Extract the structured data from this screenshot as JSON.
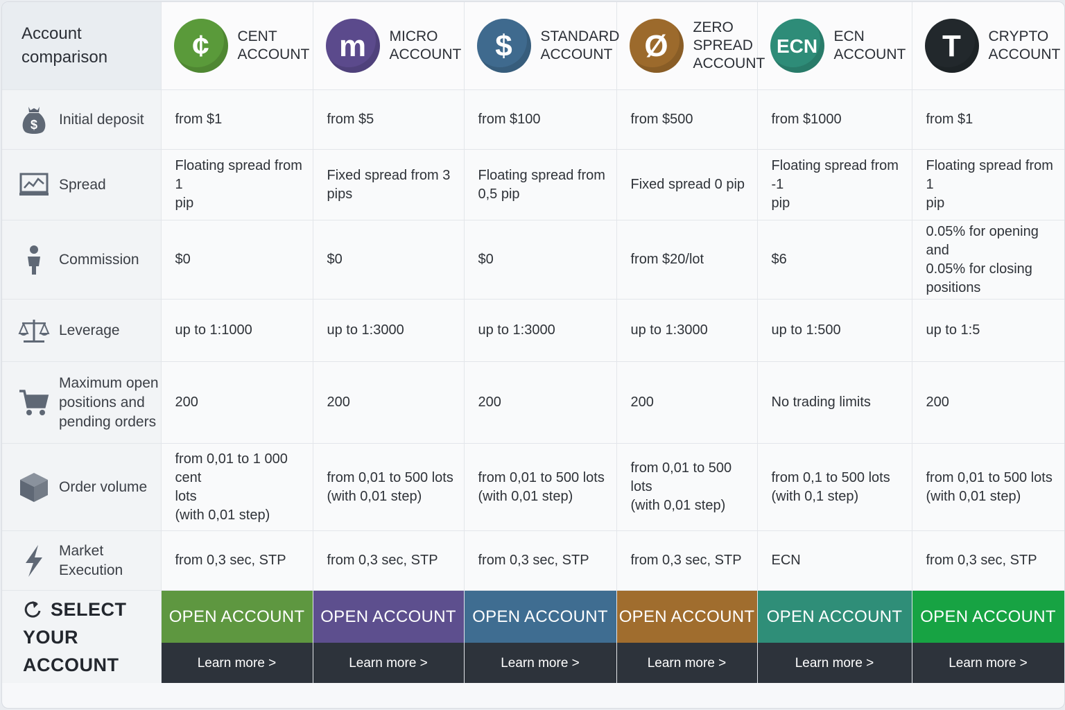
{
  "corner_title": "Account\ncomparison",
  "accounts": [
    {
      "symbol": "¢",
      "name": "CENT\nACCOUNT",
      "color": "#5a9a3a",
      "icon": "cent-icon"
    },
    {
      "symbol": "m",
      "name": "MICRO\nACCOUNT",
      "color": "#5b4a8c",
      "icon": "micro-icon"
    },
    {
      "symbol": "$",
      "name": "STANDARD\nACCOUNT",
      "color": "#3f6a8e",
      "icon": "dollar-icon"
    },
    {
      "symbol": "Ø",
      "name": "ZERO\nSPREAD\nACCOUNT",
      "color": "#9c6a2c",
      "icon": "zero-icon"
    },
    {
      "symbol": "ECN",
      "name": "ECN\nACCOUNT",
      "color": "#2e8c78",
      "icon": "ecn-icon"
    },
    {
      "symbol": "T",
      "name": "CRYPTO\nACCOUNT",
      "color": "#22282c",
      "icon": "tether-icon"
    }
  ],
  "rows": [
    {
      "key": "deposit",
      "label": "Initial deposit",
      "icon": "money-bag-icon",
      "values": [
        "from $1",
        "from $5",
        "from $100",
        "from $500",
        "from $1000",
        "from $1"
      ]
    },
    {
      "key": "spread",
      "label": "Spread",
      "icon": "chart-monitor-icon",
      "values": [
        "Floating spread from 1\npip",
        "Fixed spread from 3\npips",
        "Floating spread from\n0,5 pip",
        "Fixed spread 0 pip",
        "Floating spread from -1\npip",
        "Floating spread from 1\npip"
      ]
    },
    {
      "key": "commission",
      "label": "Commission",
      "icon": "person-icon",
      "values": [
        "$0",
        "$0",
        "$0",
        "from $20/lot",
        "$6",
        "0.05% for opening and\n0.05% for closing\npositions"
      ]
    },
    {
      "key": "leverage",
      "label": "Leverage",
      "icon": "scales-icon",
      "values": [
        "up to 1:1000",
        "up to 1:3000",
        "up to 1:3000",
        "up to 1:3000",
        "up to 1:500",
        "up to 1:5"
      ]
    },
    {
      "key": "maxpos",
      "label": "Maximum open\npositions and\npending orders",
      "icon": "cart-icon",
      "values": [
        "200",
        "200",
        "200",
        "200",
        "No trading limits",
        "200"
      ]
    },
    {
      "key": "volume",
      "label": "Order volume",
      "icon": "box-icon",
      "values": [
        "from 0,01 to 1 000 cent\nlots\n(with 0,01 step)",
        "from 0,01 to 500 lots\n(with 0,01 step)",
        "from 0,01 to 500 lots\n(with 0,01 step)",
        "from 0,01 to 500 lots\n(with 0,01 step)",
        "from 0,1 to 500 lots\n(with 0,1 step)",
        "from 0,01 to 500 lots\n(with 0,01 step)"
      ]
    },
    {
      "key": "exec",
      "label": "Market\nExecution",
      "icon": "lightning-icon",
      "values": [
        "from 0,3 sec, STP",
        "from 0,3 sec, STP",
        "from 0,3 sec, STP",
        "from 0,3 sec, STP",
        "ECN",
        "from 0,3 sec, STP"
      ]
    }
  ],
  "select": {
    "line1": "SELECT",
    "line2": "YOUR ACCOUNT",
    "icon": "refresh-arrow-icon"
  },
  "cta": {
    "open_label": "OPEN ACCOUNT",
    "learn_label": "Learn more >",
    "colors": [
      "#5e9740",
      "#5d4f8e",
      "#3f6d91",
      "#a06d2e",
      "#2f8e78",
      "#17a343"
    ]
  }
}
